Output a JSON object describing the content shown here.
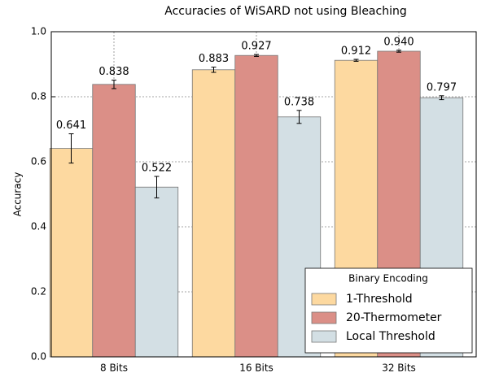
{
  "chart_data": {
    "type": "bar",
    "title": "Accuracies of WiSARD not using Bleaching",
    "ylabel": "Accuracy",
    "categories": [
      "8 Bits",
      "16 Bits",
      "32 Bits"
    ],
    "series": [
      {
        "name": "1-Threshold",
        "color": "#fdd9a0",
        "values": [
          0.641,
          0.883,
          0.912
        ],
        "value_labels": [
          "0.641",
          "0.883",
          "0.912"
        ],
        "errors": [
          0.045,
          0.008,
          0.003
        ]
      },
      {
        "name": "20-Thermometer",
        "color": "#db8f87",
        "values": [
          0.838,
          0.927,
          0.94
        ],
        "value_labels": [
          "0.838",
          "0.927",
          "0.940"
        ],
        "errors": [
          0.013,
          0.003,
          0.003
        ]
      },
      {
        "name": "Local Threshold",
        "color": "#d3dfe4",
        "values": [
          0.522,
          0.738,
          0.797
        ],
        "value_labels": [
          "0.522",
          "0.738",
          "0.797"
        ],
        "errors": [
          0.033,
          0.02,
          0.006
        ]
      }
    ],
    "ylim": [
      0,
      1
    ],
    "yticks": [
      {
        "value": 0,
        "label": "0.0"
      },
      0.2,
      0.4,
      0.6,
      0.8,
      {
        "value": 1,
        "label": "1.0"
      }
    ],
    "grid": true,
    "legend_title": "Binary Encoding",
    "legend": "lower right"
  }
}
